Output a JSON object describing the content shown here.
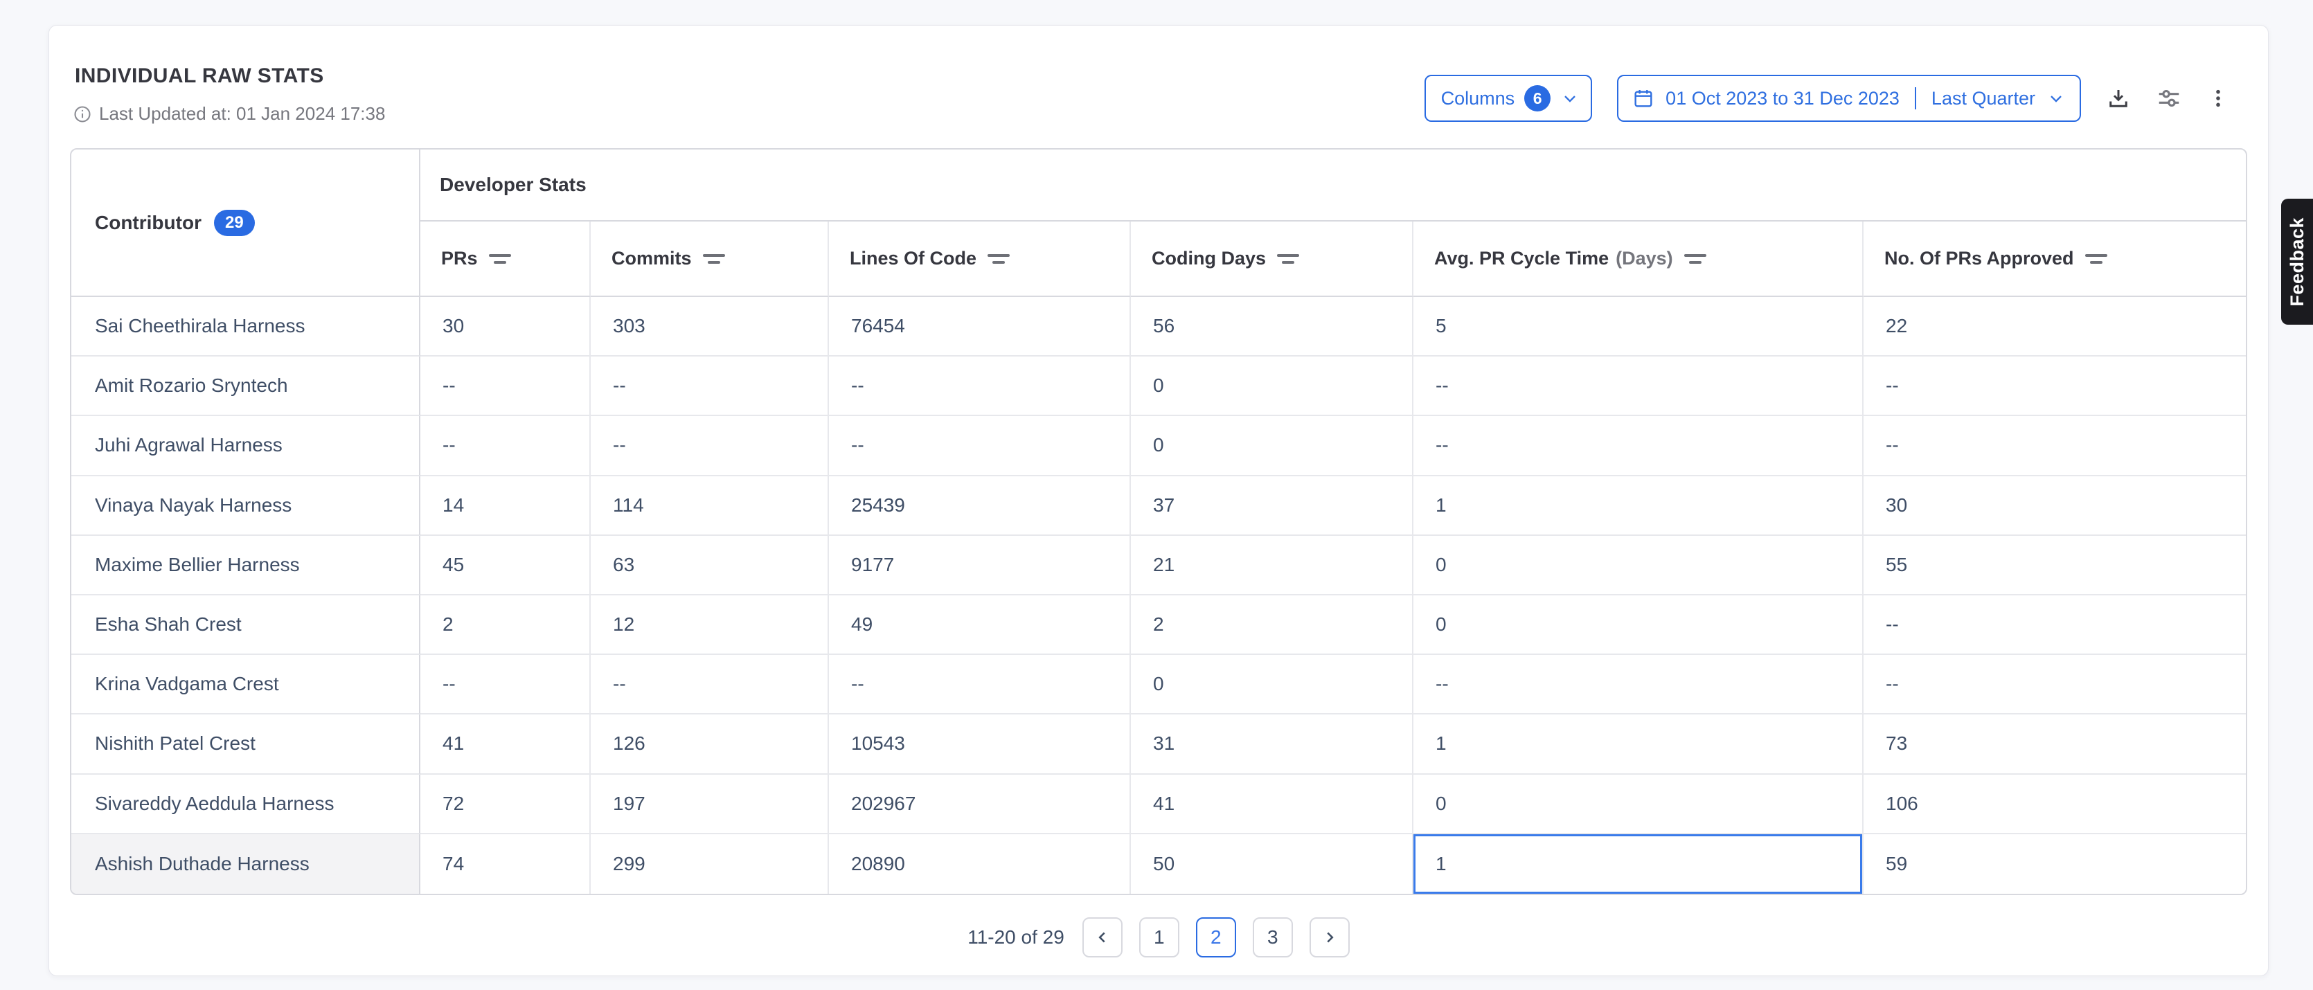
{
  "header": {
    "title": "INDIVIDUAL RAW STATS",
    "last_updated": "Last Updated at: 01 Jan 2024 17:38",
    "columns_button": {
      "label": "Columns",
      "count": "6"
    },
    "date_range": {
      "range": "01 Oct 2023 to 31 Dec 2023",
      "preset": "Last Quarter"
    }
  },
  "table": {
    "group_header": "Developer Stats",
    "contributor_header": {
      "label": "Contributor",
      "count": "29"
    },
    "columns": [
      {
        "key": "prs",
        "label": "PRs"
      },
      {
        "key": "commits",
        "label": "Commits"
      },
      {
        "key": "lines_of_code",
        "label": "Lines Of Code"
      },
      {
        "key": "coding_days",
        "label": "Coding Days"
      },
      {
        "key": "avg_pr_cycle_time",
        "label": "Avg. PR Cycle Time",
        "suffix": "(Days)"
      },
      {
        "key": "prs_approved",
        "label": "No. Of PRs Approved"
      }
    ],
    "rows": [
      {
        "name": "Sai Cheethirala Harness",
        "values": [
          "30",
          "303",
          "76454",
          "56",
          "5",
          "22"
        ]
      },
      {
        "name": "Amit Rozario Sryntech",
        "values": [
          "--",
          "--",
          "--",
          "0",
          "--",
          "--"
        ]
      },
      {
        "name": "Juhi Agrawal Harness",
        "values": [
          "--",
          "--",
          "--",
          "0",
          "--",
          "--"
        ]
      },
      {
        "name": "Vinaya Nayak Harness",
        "values": [
          "14",
          "114",
          "25439",
          "37",
          "1",
          "30"
        ]
      },
      {
        "name": "Maxime Bellier Harness",
        "values": [
          "45",
          "63",
          "9177",
          "21",
          "0",
          "55"
        ]
      },
      {
        "name": "Esha Shah Crest",
        "values": [
          "2",
          "12",
          "49",
          "2",
          "0",
          "--"
        ]
      },
      {
        "name": "Krina Vadgama Crest",
        "values": [
          "--",
          "--",
          "--",
          "0",
          "--",
          "--"
        ]
      },
      {
        "name": "Nishith Patel Crest",
        "values": [
          "41",
          "126",
          "10543",
          "31",
          "1",
          "73"
        ]
      },
      {
        "name": "Sivareddy Aeddula Harness",
        "values": [
          "72",
          "197",
          "202967",
          "41",
          "0",
          "106"
        ]
      },
      {
        "name": "Ashish Duthade Harness",
        "values": [
          "74",
          "299",
          "20890",
          "50",
          "1",
          "59"
        ],
        "highlighted": true
      }
    ],
    "selected_cell": {
      "row_index": 9,
      "col_index": 4
    }
  },
  "pagination": {
    "summary": "11-20 of 29",
    "pages": [
      "1",
      "2",
      "3"
    ],
    "active_page": "2"
  },
  "feedback_tab": "Feedback",
  "icon_names": [
    "info-icon",
    "chevron-down-icon",
    "calendar-icon",
    "download-icon",
    "sliders-icon",
    "kebab-menu-icon",
    "filter-icon",
    "chevron-left-icon",
    "chevron-right-icon"
  ],
  "colors": {
    "accent": "#2a6be2",
    "cell_text": "#3f4e66",
    "heading_text": "#36373f",
    "muted_text": "#76777e",
    "border": "#d8d9df",
    "feedback_bg": "#1b1b1f"
  }
}
